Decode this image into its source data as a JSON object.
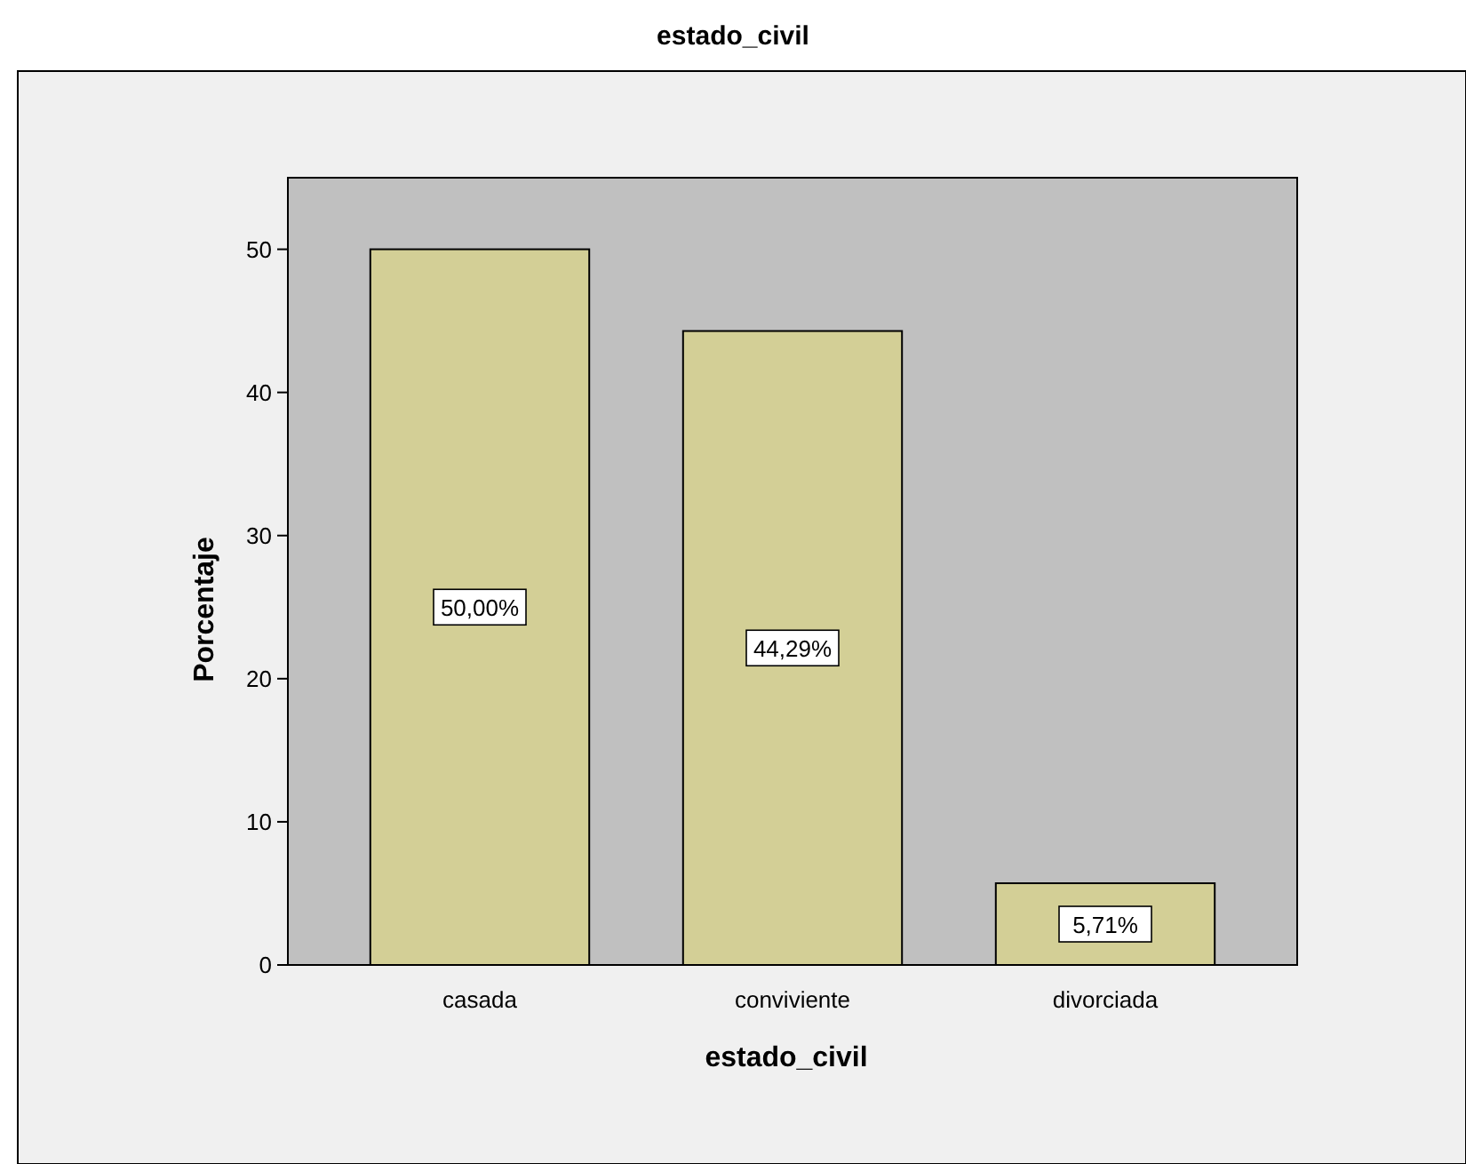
{
  "chart_data": {
    "type": "bar",
    "title": "estado_civil",
    "xlabel": "estado_civil",
    "ylabel": "Porcentaje",
    "categories": [
      "casada",
      "conviviente",
      "divorciada"
    ],
    "values": [
      50,
      44.29,
      5.71
    ],
    "value_labels": [
      "50,00%",
      "44,29%",
      "5,71%"
    ],
    "color": "#d3cf96",
    "ylim": [
      0,
      55
    ],
    "yticks": [
      0,
      10,
      20,
      30,
      40,
      50
    ],
    "grid": false
  }
}
